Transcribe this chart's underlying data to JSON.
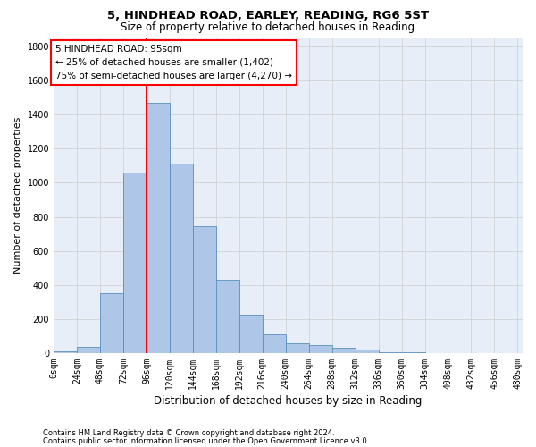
{
  "title_line1": "5, HINDHEAD ROAD, EARLEY, READING, RG6 5ST",
  "title_line2": "Size of property relative to detached houses in Reading",
  "xlabel": "Distribution of detached houses by size in Reading",
  "ylabel": "Number of detached properties",
  "bin_labels": [
    "0sqm",
    "24sqm",
    "48sqm",
    "72sqm",
    "96sqm",
    "120sqm",
    "144sqm",
    "168sqm",
    "192sqm",
    "216sqm",
    "240sqm",
    "264sqm",
    "288sqm",
    "312sqm",
    "336sqm",
    "360sqm",
    "384sqm",
    "408sqm",
    "432sqm",
    "456sqm",
    "480sqm"
  ],
  "bar_values": [
    10,
    35,
    350,
    1060,
    1470,
    1110,
    745,
    430,
    225,
    110,
    55,
    45,
    30,
    20,
    5,
    5,
    2,
    2,
    1,
    1,
    0
  ],
  "bar_color": "#aec6e8",
  "bar_edge_color": "#5a8fc0",
  "vline_x": 96,
  "annotation_line1": "5 HINDHEAD ROAD: 95sqm",
  "annotation_line2": "← 25% of detached houses are smaller (1,402)",
  "annotation_line3": "75% of semi-detached houses are larger (4,270) →",
  "annotation_box_color": "white",
  "annotation_box_edge_color": "red",
  "vline_color": "red",
  "ylim": [
    0,
    1850
  ],
  "yticks": [
    0,
    200,
    400,
    600,
    800,
    1000,
    1200,
    1400,
    1600,
    1800
  ],
  "grid_color": "#cccccc",
  "bg_color": "#e8eef8",
  "footnote1": "Contains HM Land Registry data © Crown copyright and database right 2024.",
  "footnote2": "Contains public sector information licensed under the Open Government Licence v3.0.",
  "title_fontsize": 9.5,
  "subtitle_fontsize": 8.5,
  "xlabel_fontsize": 8.5,
  "ylabel_fontsize": 8,
  "tick_fontsize": 7,
  "annot_fontsize": 7.5,
  "footnote_fontsize": 6
}
